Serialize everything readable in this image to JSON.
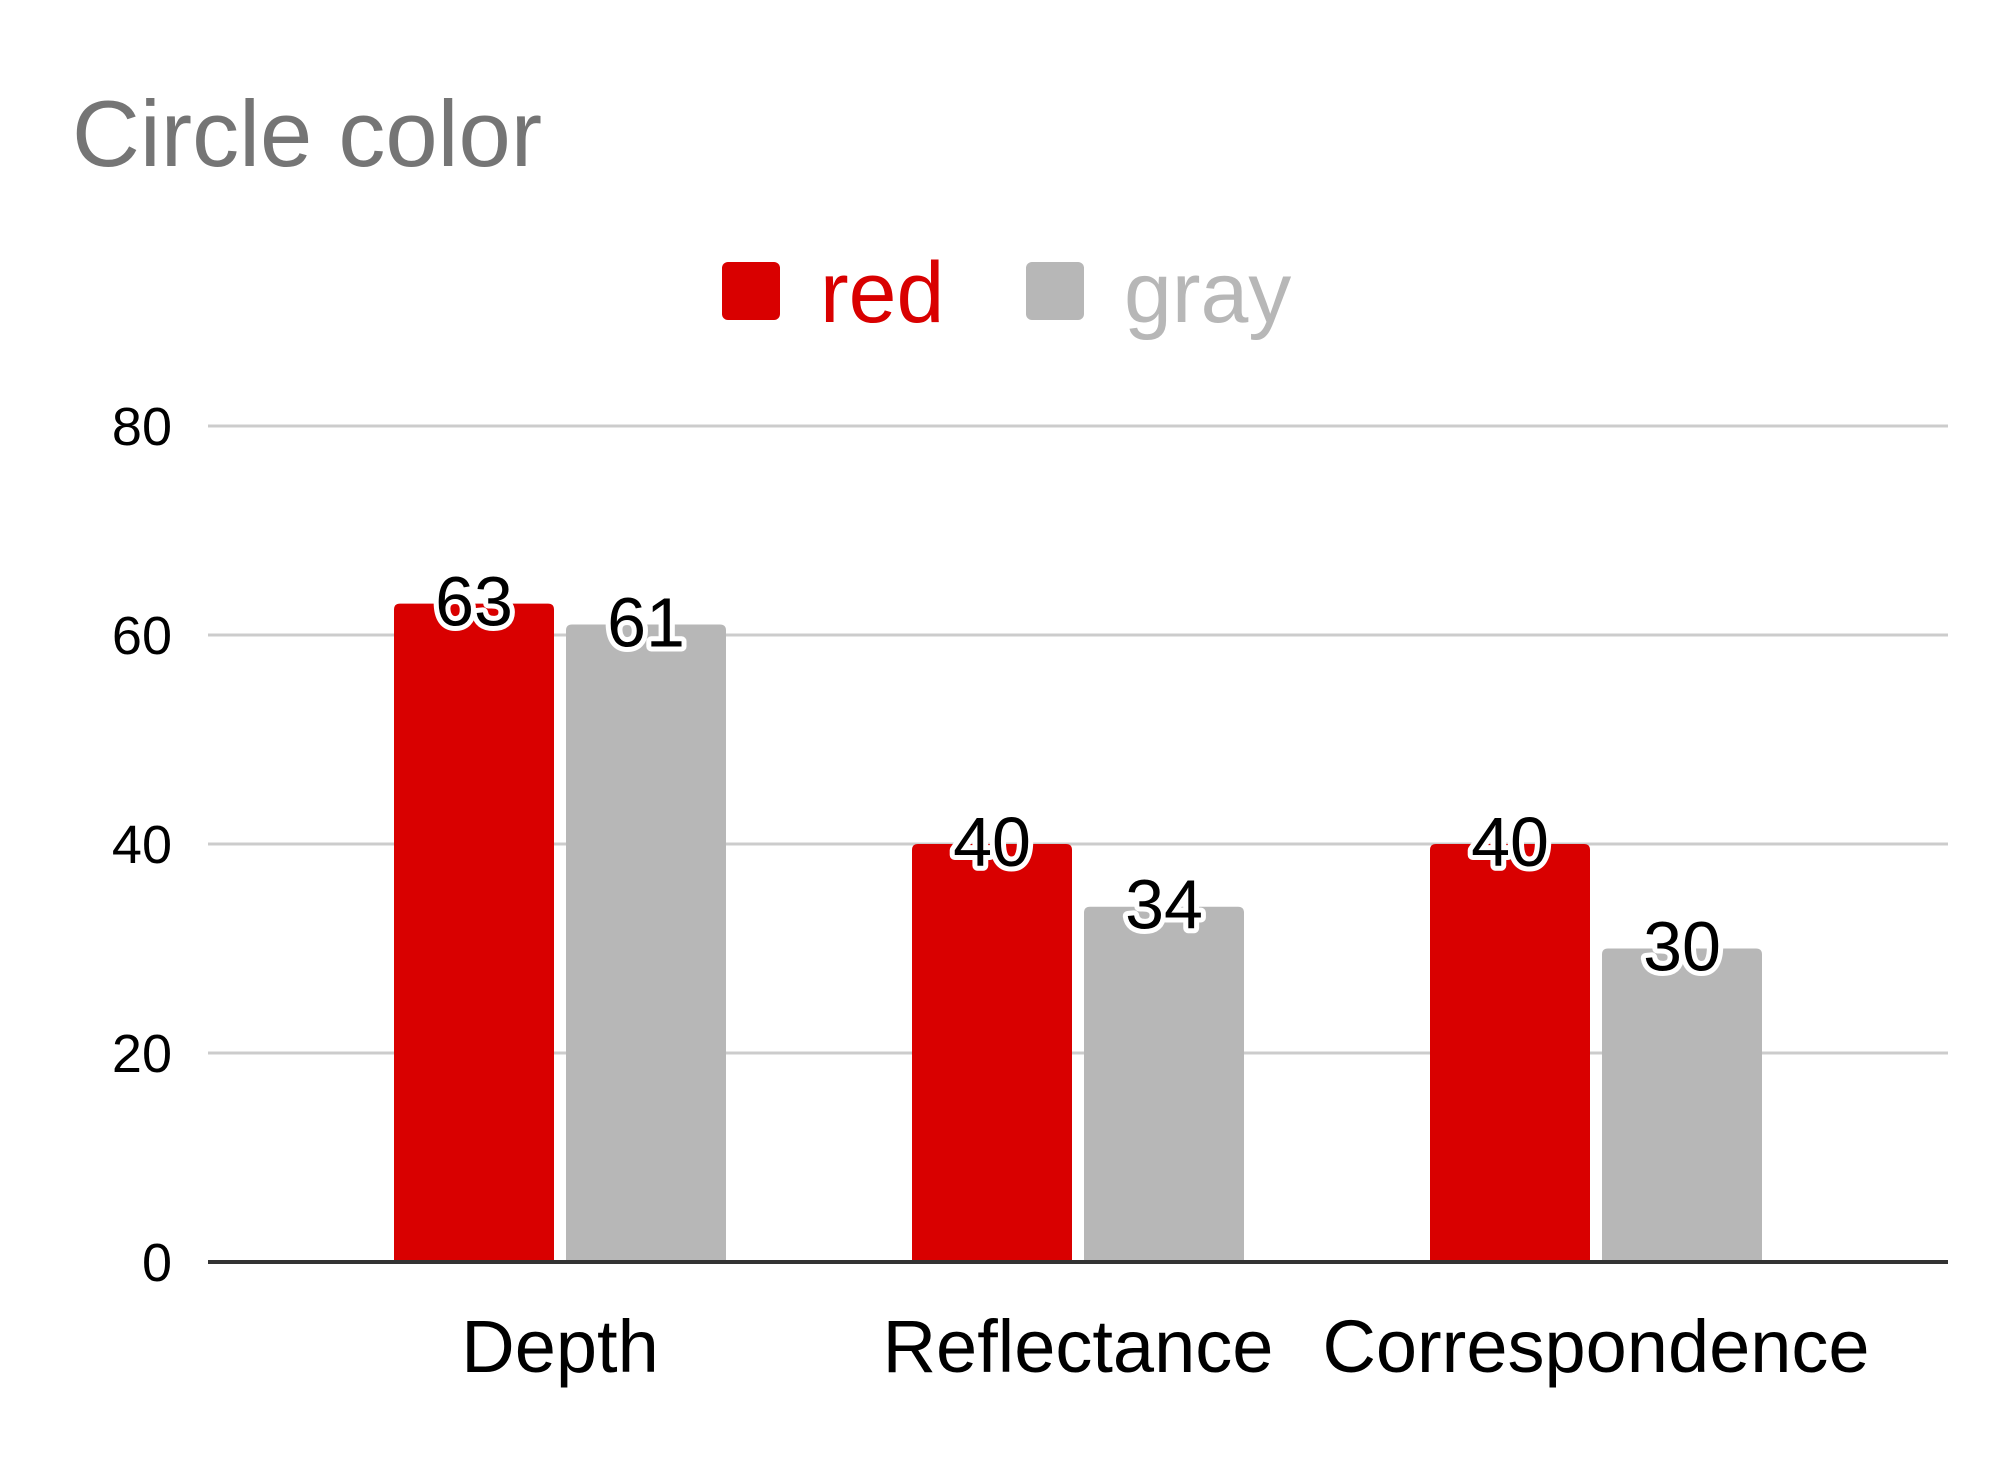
{
  "chart_data": {
    "type": "bar",
    "title": "Circle color",
    "xlabel": "",
    "ylabel": "",
    "categories": [
      "Depth",
      "Reflectance",
      "Correspondence"
    ],
    "series": [
      {
        "name": "red",
        "values": [
          63,
          40,
          40
        ],
        "color": "#d90000"
      },
      {
        "name": "gray",
        "values": [
          61,
          34,
          30
        ],
        "color": "#b7b7b7"
      }
    ],
    "ylim": [
      0,
      80
    ],
    "yticks": [
      0,
      20,
      40,
      60,
      80
    ],
    "grid": true,
    "legend_position": "top-center",
    "data_labels": true
  }
}
